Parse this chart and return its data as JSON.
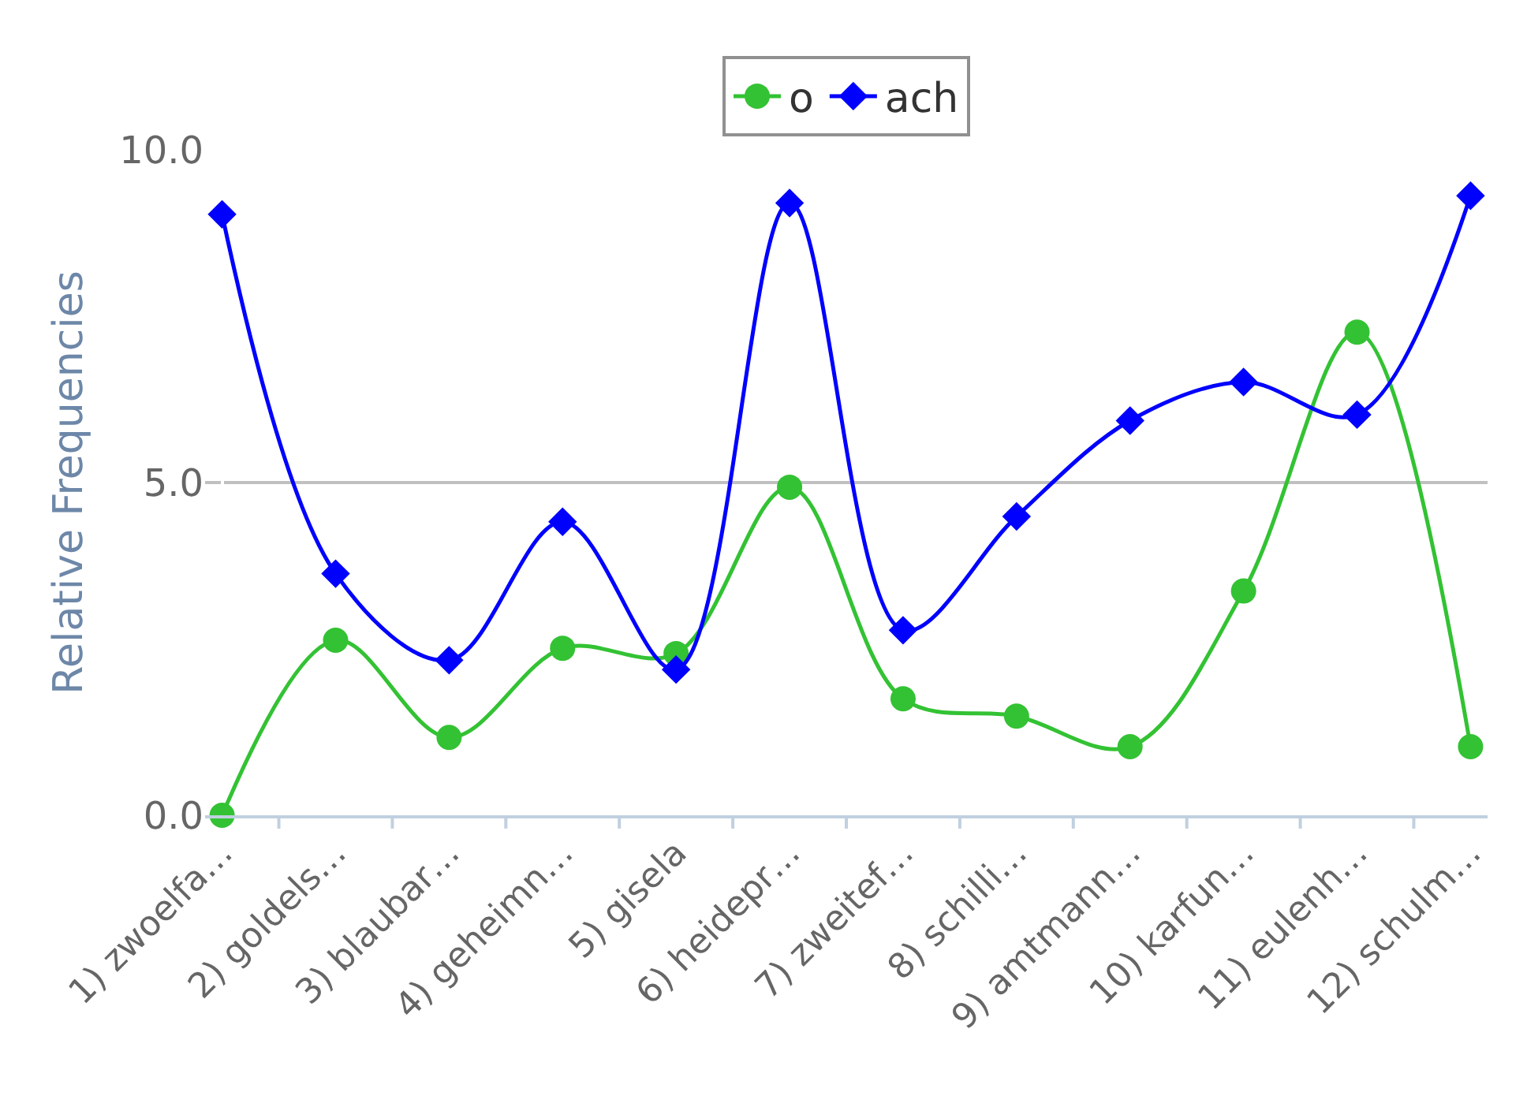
{
  "chart_data": {
    "type": "line",
    "ylabel": "Relative Frequencies",
    "categories": [
      "1) zwoelfa…",
      "2) goldels…",
      "3) blaubar…",
      "4) geheimn…",
      "5) gisela",
      "6) heidepr…",
      "7) zweitef…",
      "8) schilli…",
      "9) amtmann…",
      "10) karfun…",
      "11) eulenh…",
      "12) schulm…"
    ],
    "series": [
      {
        "name": "o",
        "color": "#33c233",
        "marker": "circle",
        "values": [
          0.0,
          2.63,
          1.17,
          2.51,
          2.43,
          4.93,
          1.75,
          1.49,
          1.03,
          3.37,
          7.26,
          1.03
        ]
      },
      {
        "name": "ach",
        "color": "#0000ff",
        "marker": "diamond",
        "values": [
          9.03,
          3.63,
          2.33,
          4.41,
          2.19,
          9.2,
          2.78,
          4.49,
          5.93,
          6.51,
          6.02,
          9.31
        ]
      }
    ],
    "ylim": [
      0,
      10
    ],
    "yticks": [
      {
        "value": 0,
        "label": "0.0"
      },
      {
        "value": 5,
        "label": "5.0"
      },
      {
        "value": 10,
        "label": "10.0"
      }
    ],
    "grid": "y",
    "legend": "top"
  }
}
